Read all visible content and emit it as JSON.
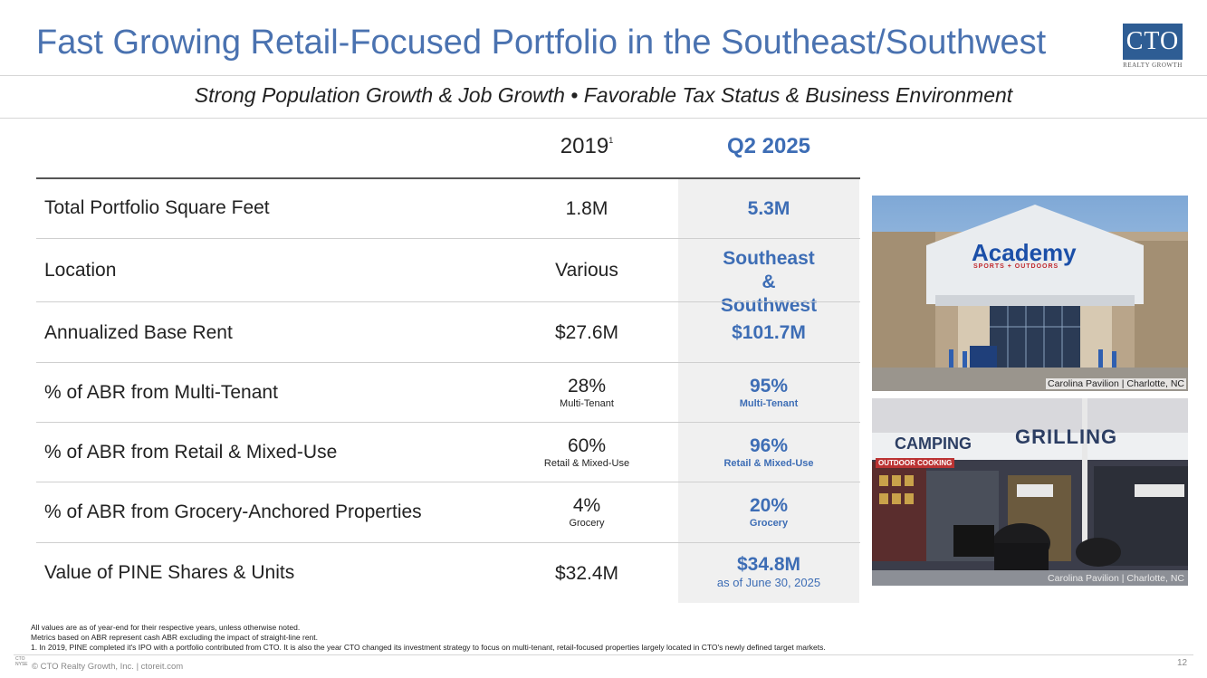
{
  "header": {
    "title": "Fast Growing Retail-Focused Portfolio in the Southeast/Southwest",
    "logo_text": "CTO",
    "logo_sub": "REALTY GROWTH",
    "subtitle": "Strong Population Growth & Job Growth • Favorable Tax Status & Business Environment"
  },
  "table": {
    "col_2019": "2019",
    "col_2019_note": "1",
    "col_q2": "Q2 2025",
    "rows": [
      {
        "label": "Total Portfolio Square Feet",
        "v2019": "1.8M",
        "v2019_sub": "",
        "vq2": "5.3M",
        "vq2_sub": ""
      },
      {
        "label": "Location",
        "v2019": "Various",
        "v2019_sub": "",
        "vq2": "Southeast & Southwest",
        "vq2_sub": ""
      },
      {
        "label": "Annualized Base Rent",
        "v2019": "$27.6M",
        "v2019_sub": "",
        "vq2": "$101.7M",
        "vq2_sub": ""
      },
      {
        "label": "% of ABR from Multi-Tenant",
        "v2019": "28%",
        "v2019_sub": "Multi-Tenant",
        "vq2": "95%",
        "vq2_sub": "Multi-Tenant"
      },
      {
        "label": "% of ABR from Retail & Mixed-Use",
        "v2019": "60%",
        "v2019_sub": "Retail & Mixed-Use",
        "vq2": "96%",
        "vq2_sub": "Retail & Mixed-Use"
      },
      {
        "label": "% of ABR from Grocery-Anchored Properties",
        "v2019": "4%",
        "v2019_sub": "Grocery",
        "vq2": "20%",
        "vq2_sub": "Grocery"
      },
      {
        "label": "Value of PINE Shares & Units",
        "v2019": "$32.4M",
        "v2019_sub": "",
        "vq2": "$34.8M",
        "vq2_sub": "as of June 30, 2025"
      }
    ]
  },
  "photos": {
    "photo1_sign": "Academy",
    "photo1_sign_sub": "SPORTS + OUTDOORS",
    "photo1_caption": "Carolina Pavilion | Charlotte, NC",
    "photo2_sign_a": "CAMPING",
    "photo2_sign_b": "GRILLING",
    "photo2_sign_c": "OUTDOOR COOKING",
    "photo2_caption": "Carolina Pavilion | Charlotte, NC"
  },
  "footnotes": {
    "line1": "All values are as of year-end for their respective years, unless otherwise noted.",
    "line2": "Metrics based on ABR represent cash ABR excluding the impact of straight-line rent.",
    "line3": "1.      In 2019, PINE completed it's IPO with a portfolio contributed from CTO.  It is also the year CTO changed its investment strategy to focus on multi-tenant, retail-focused properties largely located in CTO's newly defined target markets.",
    "copyright": "© CTO Realty Growth, Inc. | ctoreit.com",
    "mini_logo": "CTO NYSE",
    "page_number": "12"
  }
}
